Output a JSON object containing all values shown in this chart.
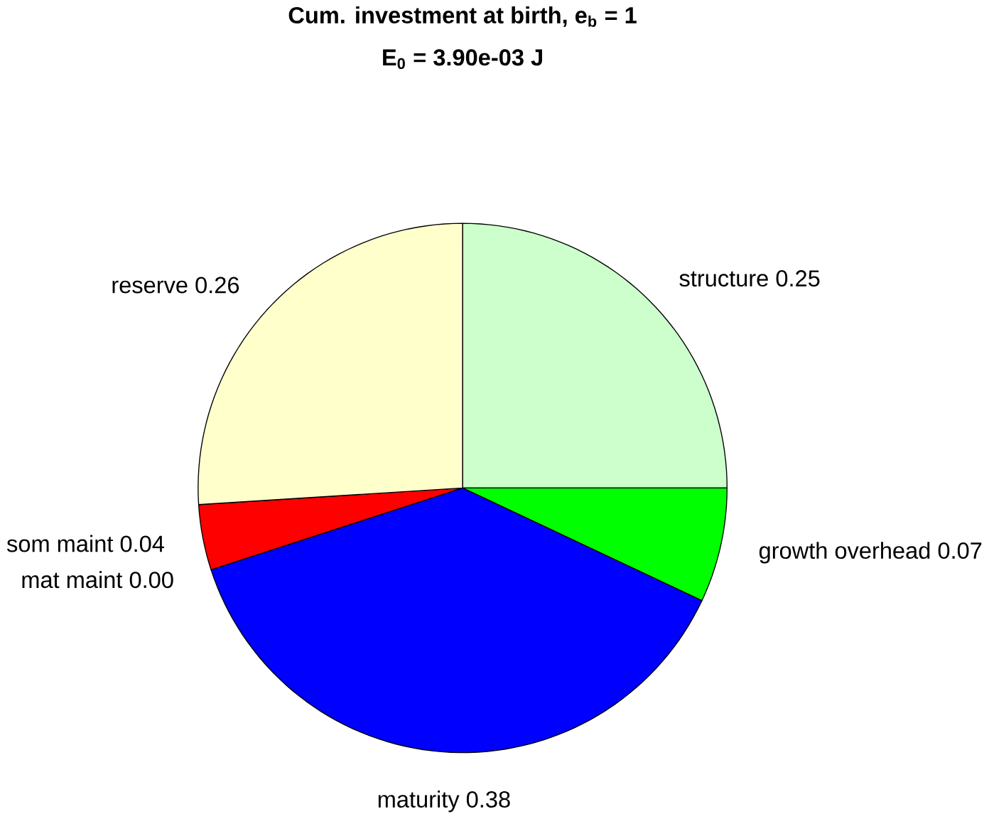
{
  "chart_data": {
    "type": "pie",
    "title": "Cum. investment at birth, e$_{b}$ = 1",
    "subtitle": "E$_{0}$ = 3.90e-03 J",
    "categories": [
      "structure 0.25",
      "growth overhead 0.07",
      "maturity 0.38",
      "mat maint 0.00",
      "som maint 0.04",
      "reserve 0.26"
    ],
    "values": [
      25,
      7,
      38,
      0,
      4,
      26
    ],
    "colors": [
      "#ccffcc",
      "#00ff00",
      "#0000ff",
      "#ff00ff",
      "#ff0000",
      "#ffffcc"
    ]
  }
}
